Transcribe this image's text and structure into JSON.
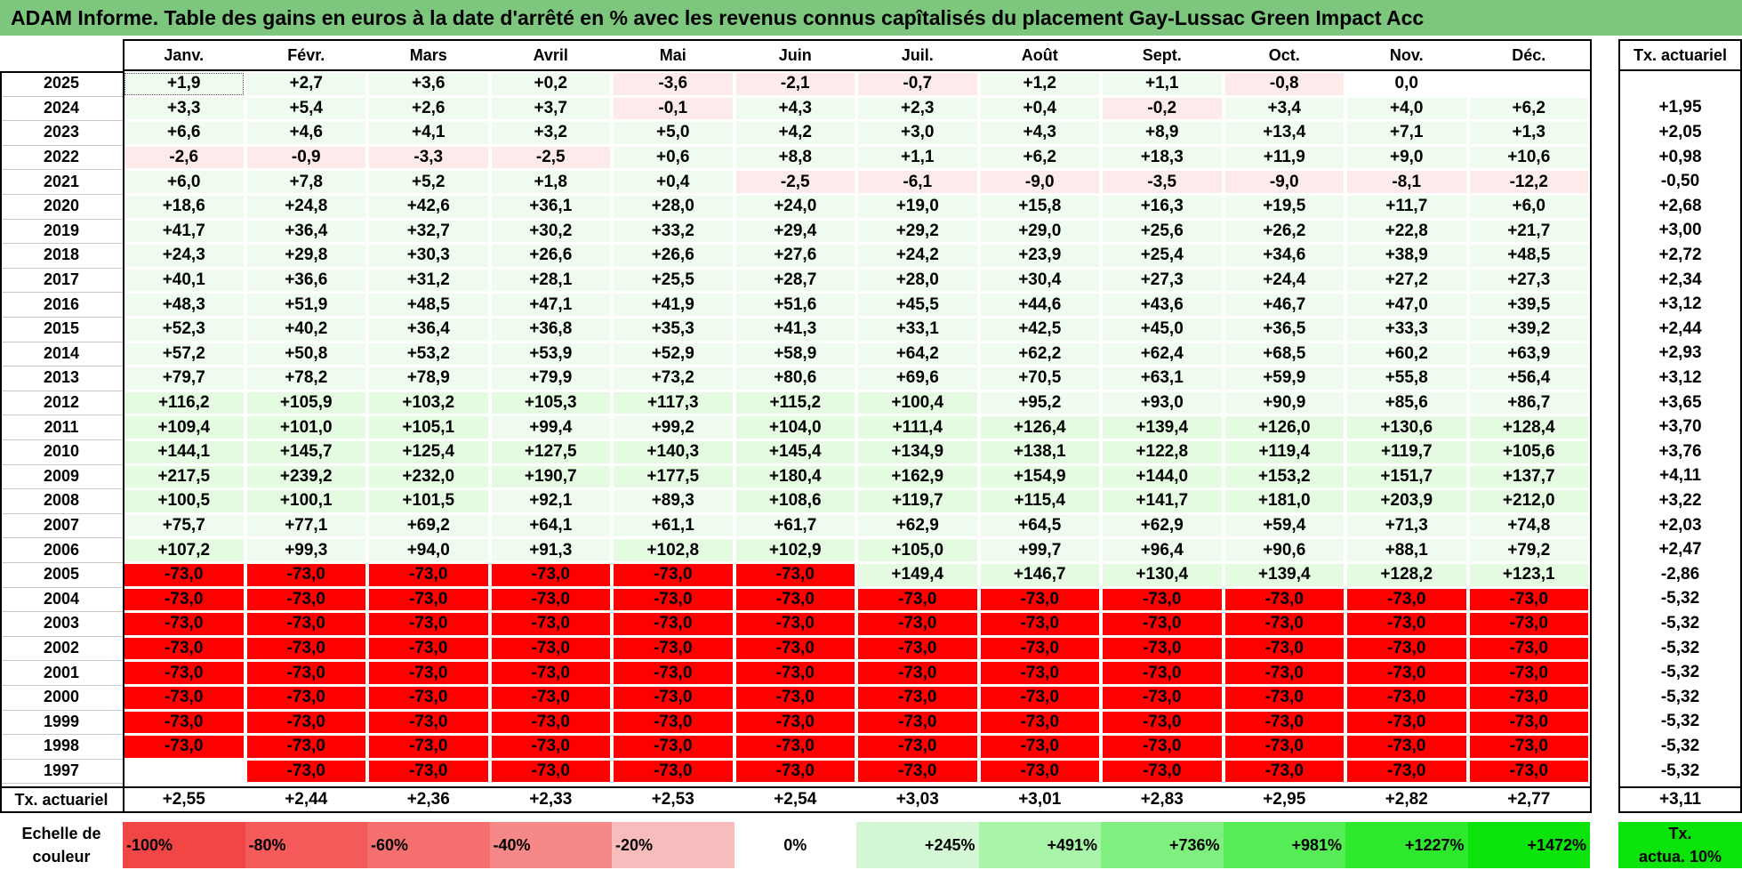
{
  "title": "ADAM Informe. Table des gains en euros à la date d'arrêté en % avec les revenus connus capîtalisés du placement Gay-Lussac Green Impact Acc",
  "months": [
    "Janv.",
    "Févr.",
    "Mars",
    "Avril",
    "Mai",
    "Juin",
    "Juil.",
    "Août",
    "Sept.",
    "Oct.",
    "Nov.",
    "Déc."
  ],
  "tx_header": "Tx. actuariel",
  "rows": [
    {
      "year": "2025",
      "values": [
        "+1,9",
        "+2,7",
        "+3,6",
        "+0,2",
        "-3,6",
        "-2,1",
        "-0,7",
        "+1,2",
        "+1,1",
        "-0,8",
        "0,0",
        ""
      ],
      "tx": ""
    },
    {
      "year": "2024",
      "values": [
        "+3,3",
        "+5,4",
        "+2,6",
        "+3,7",
        "-0,1",
        "+4,3",
        "+2,3",
        "+0,4",
        "-0,2",
        "+3,4",
        "+4,0",
        "+6,2"
      ],
      "tx": "+1,95"
    },
    {
      "year": "2023",
      "values": [
        "+6,6",
        "+4,6",
        "+4,1",
        "+3,2",
        "+5,0",
        "+4,2",
        "+3,0",
        "+4,3",
        "+8,9",
        "+13,4",
        "+7,1",
        "+1,3"
      ],
      "tx": "+2,05"
    },
    {
      "year": "2022",
      "values": [
        "-2,6",
        "-0,9",
        "-3,3",
        "-2,5",
        "+0,6",
        "+8,8",
        "+1,1",
        "+6,2",
        "+18,3",
        "+11,9",
        "+9,0",
        "+10,6"
      ],
      "tx": "+0,98"
    },
    {
      "year": "2021",
      "values": [
        "+6,0",
        "+7,8",
        "+5,2",
        "+1,8",
        "+0,4",
        "-2,5",
        "-6,1",
        "-9,0",
        "-3,5",
        "-9,0",
        "-8,1",
        "-12,2"
      ],
      "tx": "-0,50"
    },
    {
      "year": "2020",
      "values": [
        "+18,6",
        "+24,8",
        "+42,6",
        "+36,1",
        "+28,0",
        "+24,0",
        "+19,0",
        "+15,8",
        "+16,3",
        "+19,5",
        "+11,7",
        "+6,0"
      ],
      "tx": "+2,68"
    },
    {
      "year": "2019",
      "values": [
        "+41,7",
        "+36,4",
        "+32,7",
        "+30,2",
        "+33,2",
        "+29,4",
        "+29,2",
        "+29,0",
        "+25,6",
        "+26,2",
        "+22,8",
        "+21,7"
      ],
      "tx": "+3,00"
    },
    {
      "year": "2018",
      "values": [
        "+24,3",
        "+29,8",
        "+30,3",
        "+26,6",
        "+26,6",
        "+27,6",
        "+24,2",
        "+23,9",
        "+25,4",
        "+34,6",
        "+38,9",
        "+48,5"
      ],
      "tx": "+2,72"
    },
    {
      "year": "2017",
      "values": [
        "+40,1",
        "+36,6",
        "+31,2",
        "+28,1",
        "+25,5",
        "+28,7",
        "+28,0",
        "+30,4",
        "+27,3",
        "+24,4",
        "+27,2",
        "+27,3"
      ],
      "tx": "+2,34"
    },
    {
      "year": "2016",
      "values": [
        "+48,3",
        "+51,9",
        "+48,5",
        "+47,1",
        "+41,9",
        "+51,6",
        "+45,5",
        "+44,6",
        "+43,6",
        "+46,7",
        "+47,0",
        "+39,5"
      ],
      "tx": "+3,12"
    },
    {
      "year": "2015",
      "values": [
        "+52,3",
        "+40,2",
        "+36,4",
        "+36,8",
        "+35,3",
        "+41,3",
        "+33,1",
        "+42,5",
        "+45,0",
        "+36,5",
        "+33,3",
        "+39,2"
      ],
      "tx": "+2,44"
    },
    {
      "year": "2014",
      "values": [
        "+57,2",
        "+50,8",
        "+53,2",
        "+53,9",
        "+52,9",
        "+58,9",
        "+64,2",
        "+62,2",
        "+62,4",
        "+68,5",
        "+60,2",
        "+63,9"
      ],
      "tx": "+2,93"
    },
    {
      "year": "2013",
      "values": [
        "+79,7",
        "+78,2",
        "+78,9",
        "+79,9",
        "+73,2",
        "+80,6",
        "+69,6",
        "+70,5",
        "+63,1",
        "+59,9",
        "+55,8",
        "+56,4"
      ],
      "tx": "+3,12"
    },
    {
      "year": "2012",
      "values": [
        "+116,2",
        "+105,9",
        "+103,2",
        "+105,3",
        "+117,3",
        "+115,2",
        "+100,4",
        "+95,2",
        "+93,0",
        "+90,9",
        "+85,6",
        "+86,7"
      ],
      "tx": "+3,65"
    },
    {
      "year": "2011",
      "values": [
        "+109,4",
        "+101,0",
        "+105,1",
        "+99,4",
        "+99,2",
        "+104,0",
        "+111,4",
        "+126,4",
        "+139,4",
        "+126,0",
        "+130,6",
        "+128,4"
      ],
      "tx": "+3,70"
    },
    {
      "year": "2010",
      "values": [
        "+144,1",
        "+145,7",
        "+125,4",
        "+127,5",
        "+140,3",
        "+145,4",
        "+134,9",
        "+138,1",
        "+122,8",
        "+119,4",
        "+119,7",
        "+105,6"
      ],
      "tx": "+3,76"
    },
    {
      "year": "2009",
      "values": [
        "+217,5",
        "+239,2",
        "+232,0",
        "+190,7",
        "+177,5",
        "+180,4",
        "+162,9",
        "+154,9",
        "+144,0",
        "+153,2",
        "+151,7",
        "+137,7"
      ],
      "tx": "+4,11"
    },
    {
      "year": "2008",
      "values": [
        "+100,5",
        "+100,1",
        "+101,5",
        "+92,1",
        "+89,3",
        "+108,6",
        "+119,7",
        "+115,4",
        "+141,7",
        "+181,0",
        "+203,9",
        "+212,0"
      ],
      "tx": "+3,22"
    },
    {
      "year": "2007",
      "values": [
        "+75,7",
        "+77,1",
        "+69,2",
        "+64,1",
        "+61,1",
        "+61,7",
        "+62,9",
        "+64,5",
        "+62,9",
        "+59,4",
        "+71,3",
        "+74,8"
      ],
      "tx": "+2,03"
    },
    {
      "year": "2006",
      "values": [
        "+107,2",
        "+99,3",
        "+94,0",
        "+91,3",
        "+102,8",
        "+102,9",
        "+105,0",
        "+99,7",
        "+96,4",
        "+90,6",
        "+88,1",
        "+79,2"
      ],
      "tx": "+2,47"
    },
    {
      "year": "2005",
      "values": [
        "-73,0",
        "-73,0",
        "-73,0",
        "-73,0",
        "-73,0",
        "-73,0",
        "+149,4",
        "+146,7",
        "+130,4",
        "+139,4",
        "+128,2",
        "+123,1"
      ],
      "tx": "-2,86"
    },
    {
      "year": "2004",
      "values": [
        "-73,0",
        "-73,0",
        "-73,0",
        "-73,0",
        "-73,0",
        "-73,0",
        "-73,0",
        "-73,0",
        "-73,0",
        "-73,0",
        "-73,0",
        "-73,0"
      ],
      "tx": "-5,32"
    },
    {
      "year": "2003",
      "values": [
        "-73,0",
        "-73,0",
        "-73,0",
        "-73,0",
        "-73,0",
        "-73,0",
        "-73,0",
        "-73,0",
        "-73,0",
        "-73,0",
        "-73,0",
        "-73,0"
      ],
      "tx": "-5,32"
    },
    {
      "year": "2002",
      "values": [
        "-73,0",
        "-73,0",
        "-73,0",
        "-73,0",
        "-73,0",
        "-73,0",
        "-73,0",
        "-73,0",
        "-73,0",
        "-73,0",
        "-73,0",
        "-73,0"
      ],
      "tx": "-5,32"
    },
    {
      "year": "2001",
      "values": [
        "-73,0",
        "-73,0",
        "-73,0",
        "-73,0",
        "-73,0",
        "-73,0",
        "-73,0",
        "-73,0",
        "-73,0",
        "-73,0",
        "-73,0",
        "-73,0"
      ],
      "tx": "-5,32"
    },
    {
      "year": "2000",
      "values": [
        "-73,0",
        "-73,0",
        "-73,0",
        "-73,0",
        "-73,0",
        "-73,0",
        "-73,0",
        "-73,0",
        "-73,0",
        "-73,0",
        "-73,0",
        "-73,0"
      ],
      "tx": "-5,32"
    },
    {
      "year": "1999",
      "values": [
        "-73,0",
        "-73,0",
        "-73,0",
        "-73,0",
        "-73,0",
        "-73,0",
        "-73,0",
        "-73,0",
        "-73,0",
        "-73,0",
        "-73,0",
        "-73,0"
      ],
      "tx": "-5,32"
    },
    {
      "year": "1998",
      "values": [
        "-73,0",
        "-73,0",
        "-73,0",
        "-73,0",
        "-73,0",
        "-73,0",
        "-73,0",
        "-73,0",
        "-73,0",
        "-73,0",
        "-73,0",
        "-73,0"
      ],
      "tx": "-5,32"
    },
    {
      "year": "1997",
      "values": [
        "",
        "-73,0",
        "-73,0",
        "-73,0",
        "-73,0",
        "-73,0",
        "-73,0",
        "-73,0",
        "-73,0",
        "-73,0",
        "-73,0",
        "-73,0"
      ],
      "tx": "-5,32"
    }
  ],
  "footer": {
    "label": "Tx. actuariel",
    "values": [
      "+2,55",
      "+2,44",
      "+2,36",
      "+2,33",
      "+2,53",
      "+2,54",
      "+3,03",
      "+3,01",
      "+2,83",
      "+2,95",
      "+2,82",
      "+2,77"
    ],
    "tx": "+3,11"
  },
  "legend": {
    "label_line1": "Echelle de",
    "label_line2": "couleur",
    "items": [
      {
        "text": "-100%",
        "color": "#f24646",
        "align": "left"
      },
      {
        "text": "-80%",
        "color": "#f45a5a",
        "align": "left"
      },
      {
        "text": "-60%",
        "color": "#f66f6f",
        "align": "left"
      },
      {
        "text": "-40%",
        "color": "#f78888",
        "align": "left"
      },
      {
        "text": "-20%",
        "color": "#f9bcbc",
        "align": "left"
      },
      {
        "text": "0%",
        "color": "#ffffff",
        "align": "center"
      },
      {
        "text": "+245%",
        "color": "#d2f7d2",
        "align": "right"
      },
      {
        "text": "+491%",
        "color": "#a8f4a8",
        "align": "right"
      },
      {
        "text": "+736%",
        "color": "#7ff07f",
        "align": "right"
      },
      {
        "text": "+981%",
        "color": "#55ec55",
        "align": "right"
      },
      {
        "text": "+1227%",
        "color": "#2ee82e",
        "align": "right"
      },
      {
        "text": "+1472%",
        "color": "#0be40b",
        "align": "right"
      }
    ],
    "tx_line1": "Tx.",
    "tx_line2": "actua. 10%",
    "tx_color": "#0be40b"
  },
  "colors": {
    "header_bar": "#7dc67d",
    "deep_red": "#ff0000",
    "light_pink": "#fdeaea",
    "very_light_green": "#effbee",
    "light_green": "#e4fbe2"
  }
}
